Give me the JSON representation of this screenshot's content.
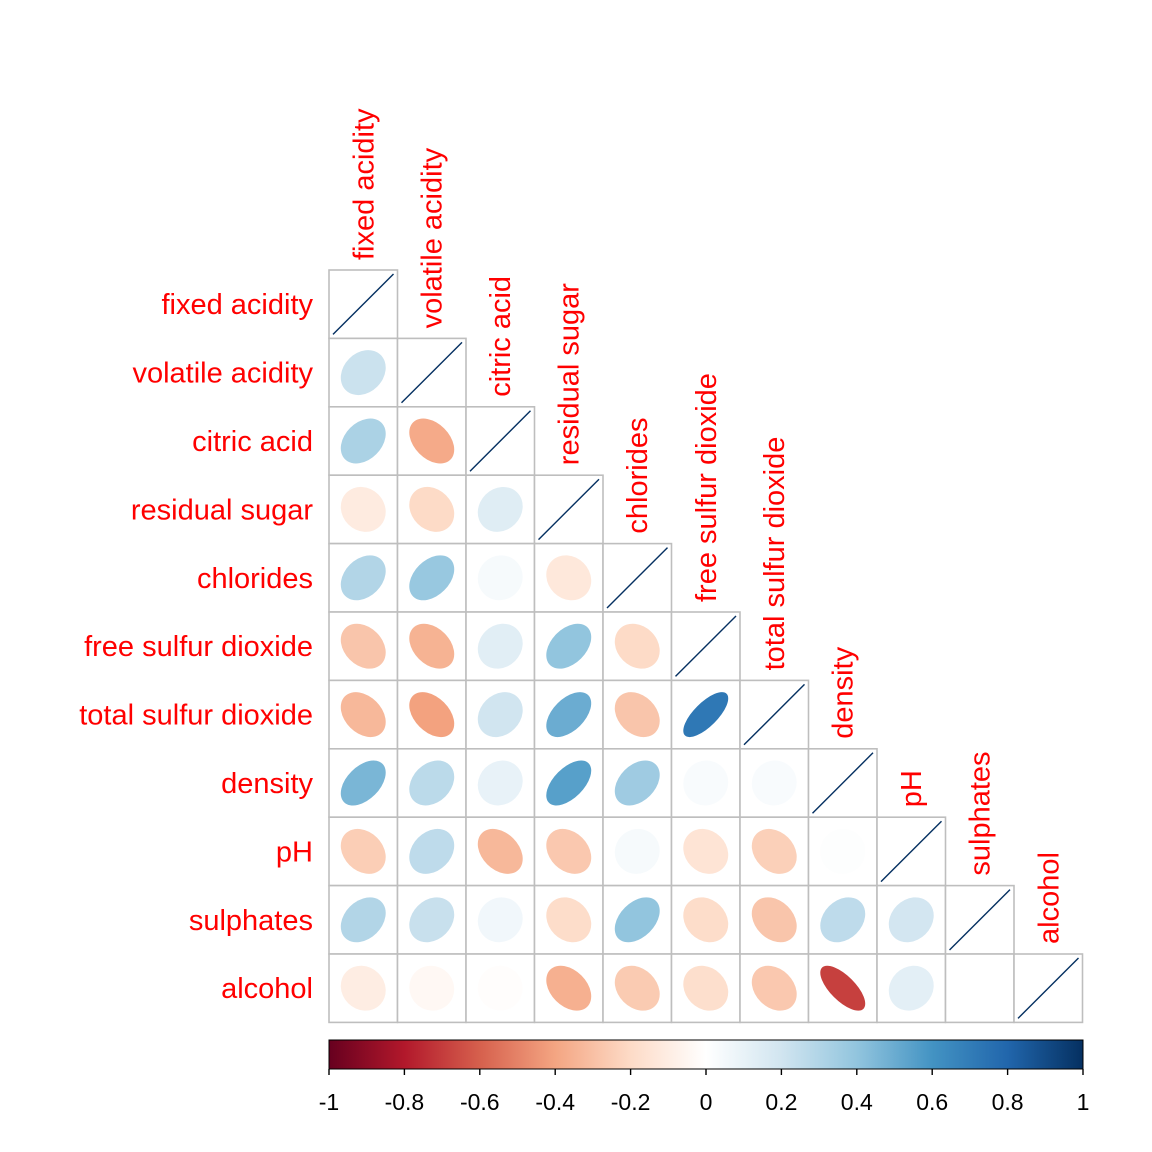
{
  "chart_data": {
    "type": "heatmap",
    "subtype": "correlation-ellipse-lower-triangle",
    "title": "",
    "variables": [
      "fixed acidity",
      "volatile acidity",
      "citric acid",
      "residual sugar",
      "chlorides",
      "free sulfur dioxide",
      "total sulfur dioxide",
      "density",
      "pH",
      "sulphates",
      "alcohol"
    ],
    "matrix": [
      [
        1.0,
        0.22,
        0.32,
        -0.11,
        0.3,
        -0.28,
        -0.33,
        0.46,
        -0.25,
        0.3,
        -0.1
      ],
      [
        0.22,
        1.0,
        -0.38,
        -0.2,
        0.38,
        -0.35,
        -0.41,
        0.27,
        0.26,
        0.23,
        -0.04
      ],
      [
        0.32,
        -0.38,
        1.0,
        0.14,
        0.04,
        0.13,
        0.2,
        0.1,
        -0.33,
        0.06,
        -0.01
      ],
      [
        -0.11,
        -0.2,
        0.14,
        1.0,
        -0.13,
        0.4,
        0.5,
        0.55,
        -0.27,
        -0.19,
        -0.36
      ],
      [
        0.3,
        0.38,
        0.04,
        -0.13,
        1.0,
        -0.2,
        -0.28,
        0.36,
        0.04,
        0.4,
        -0.26
      ],
      [
        -0.28,
        -0.35,
        0.13,
        0.4,
        -0.2,
        1.0,
        0.72,
        0.03,
        -0.15,
        -0.19,
        -0.18
      ],
      [
        -0.33,
        -0.41,
        0.2,
        0.5,
        -0.28,
        0.72,
        1.0,
        0.03,
        -0.24,
        -0.28,
        -0.27
      ],
      [
        0.46,
        0.27,
        0.1,
        0.55,
        0.36,
        0.03,
        0.03,
        1.0,
        0.01,
        0.26,
        -0.69
      ],
      [
        -0.25,
        0.26,
        -0.33,
        -0.27,
        0.04,
        -0.15,
        -0.24,
        0.01,
        1.0,
        0.19,
        0.12
      ],
      [
        0.3,
        0.23,
        0.06,
        -0.19,
        0.4,
        -0.19,
        -0.28,
        0.26,
        0.19,
        1.0,
        0.0
      ],
      [
        -0.1,
        -0.04,
        -0.01,
        -0.36,
        -0.26,
        -0.18,
        -0.27,
        -0.69,
        0.12,
        0.0,
        1.0
      ]
    ],
    "colorbar": {
      "ticks": [
        "-1",
        "-0.8",
        "-0.6",
        "-0.4",
        "-0.2",
        "0",
        "0.2",
        "0.4",
        "0.6",
        "0.8",
        "1"
      ],
      "range": [
        -1,
        1
      ],
      "colors": [
        "#67001F",
        "#B2182B",
        "#D6604D",
        "#F4A582",
        "#FDDBC7",
        "#FFFFFF",
        "#D1E5F0",
        "#92C5DE",
        "#4393C3",
        "#2166AC",
        "#053061"
      ]
    },
    "label_color": "#FF0000",
    "grid": true
  }
}
